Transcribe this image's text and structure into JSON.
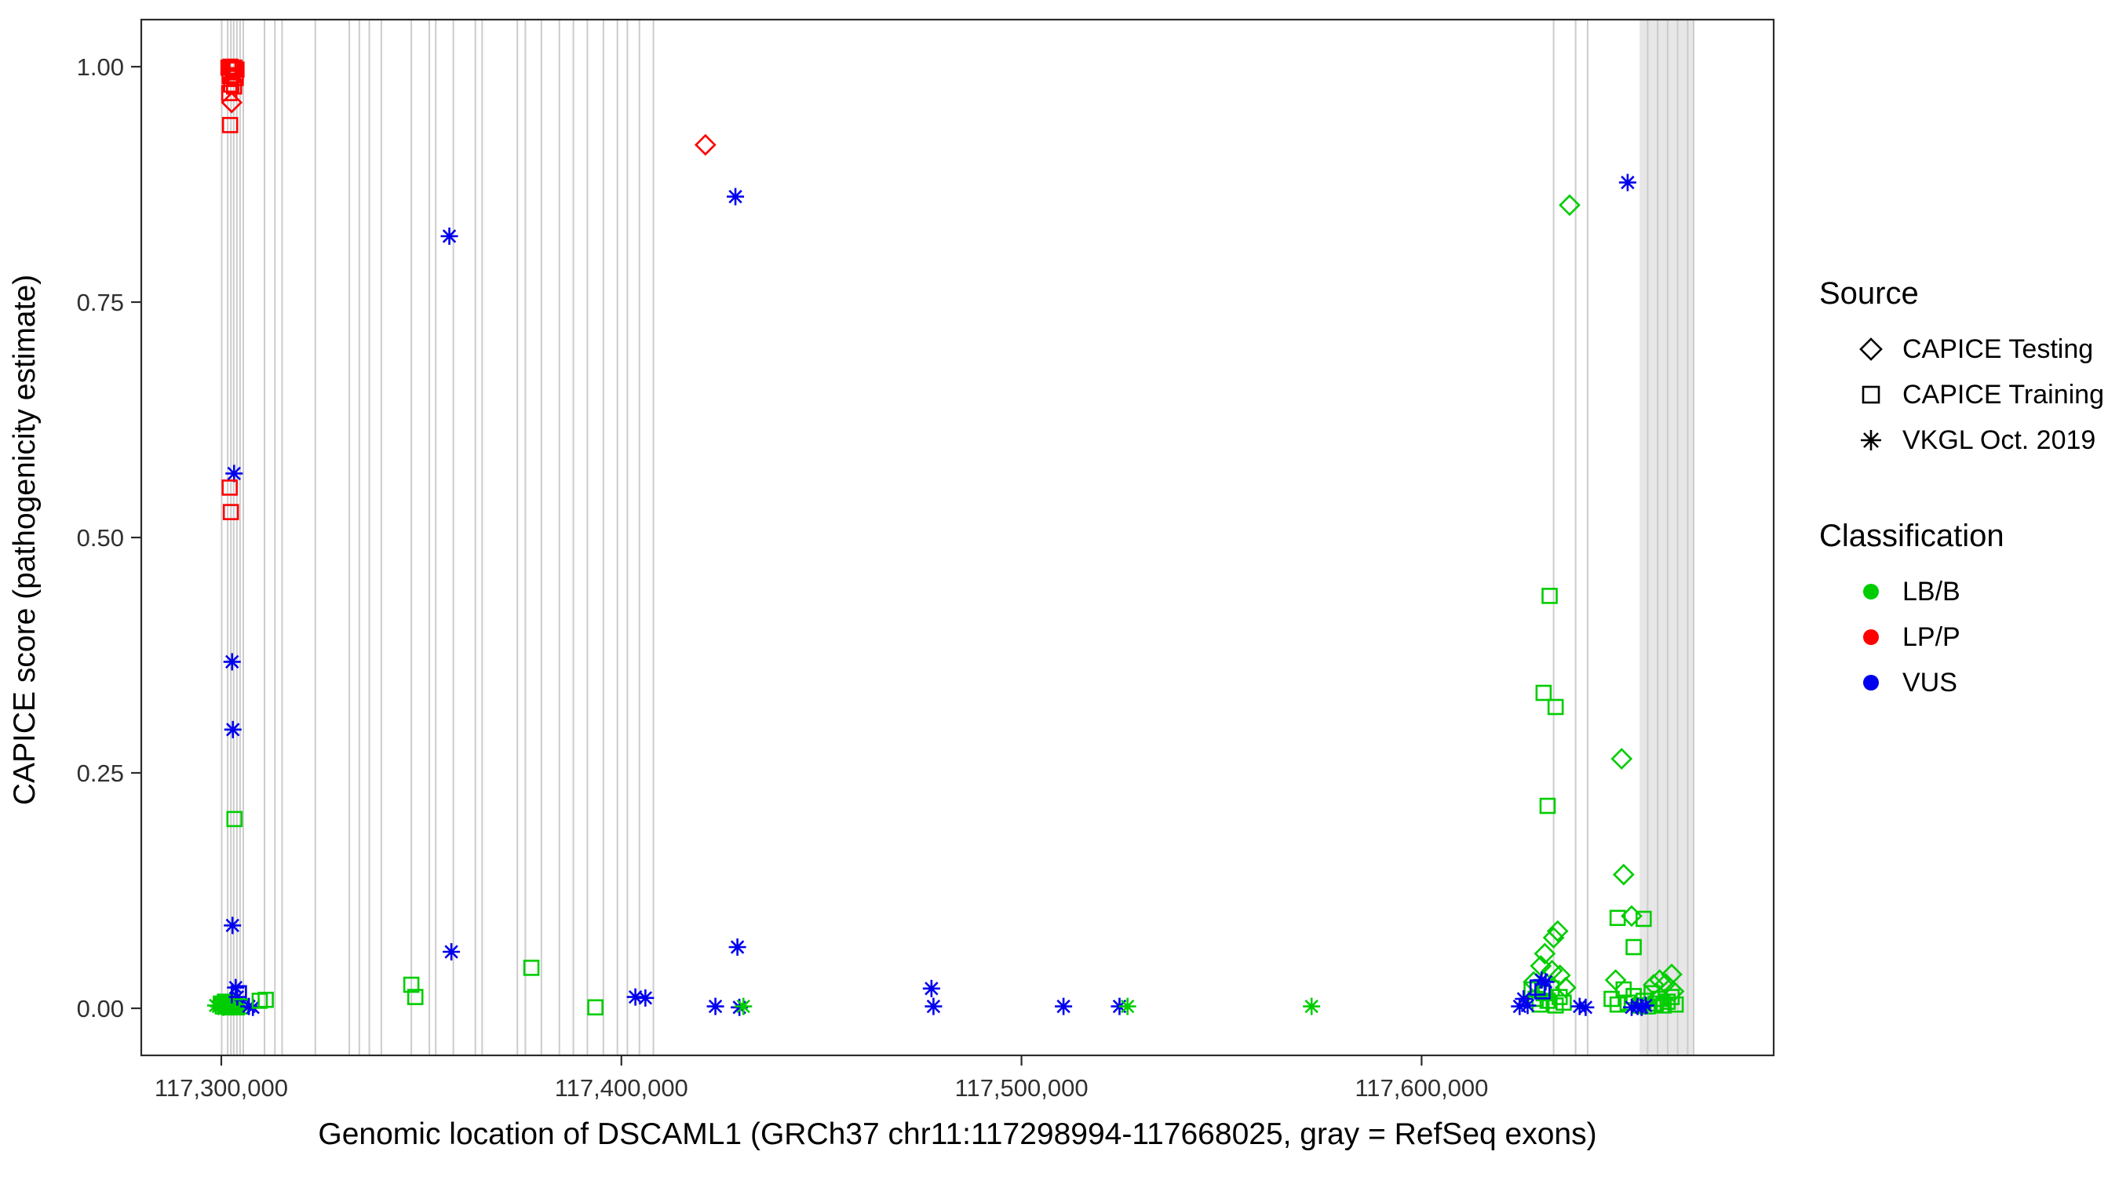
{
  "legend": {
    "source_title": "Source",
    "source_items": [
      {
        "label": "CAPICE Testing",
        "shape": "diamond"
      },
      {
        "label": "CAPICE Training",
        "shape": "square"
      },
      {
        "label": "VKGL Oct. 2019",
        "shape": "asterisk"
      }
    ],
    "classification_title": "Classification",
    "classification_items": [
      {
        "label": "LB/B",
        "color": "#00CD00"
      },
      {
        "label": "LP/P",
        "color": "#FF0000"
      },
      {
        "label": "VUS",
        "color": "#0000EE"
      }
    ]
  },
  "chart_data": {
    "type": "scatter",
    "title": "",
    "xlabel": "Genomic location of DSCAML1 (GRCh37 chr11:117298994-117668025, gray = RefSeq exons)",
    "ylabel": "CAPICE score (pathogenicity estimate)",
    "xlim": [
      117280000,
      117688000
    ],
    "ylim": [
      -0.05,
      1.05
    ],
    "x_ticks": [
      {
        "value": 117300000,
        "label": "117,300,000"
      },
      {
        "value": 117400000,
        "label": "117,400,000"
      },
      {
        "value": 117500000,
        "label": "117,500,000"
      },
      {
        "value": 117600000,
        "label": "117,600,000"
      }
    ],
    "y_ticks": [
      {
        "value": 0.0,
        "label": "0.00"
      },
      {
        "value": 0.25,
        "label": "0.25"
      },
      {
        "value": 0.5,
        "label": "0.50"
      },
      {
        "value": 0.75,
        "label": "0.75"
      },
      {
        "value": 1.0,
        "label": "1.00"
      }
    ],
    "source_codes": {
      "T": "CAPICE Testing",
      "R": "CAPICE Training",
      "V": "VKGL Oct. 2019"
    },
    "class_codes": {
      "B": "LB/B",
      "P": "LP/P",
      "U": "VUS"
    },
    "shape_by_source": {
      "CAPICE Testing": "diamond",
      "CAPICE Training": "square",
      "VKGL Oct. 2019": "asterisk"
    },
    "color_by_classification": {
      "LB/B": "#00CD00",
      "LP/P": "#FF0000",
      "VUS": "#0000EE"
    },
    "exon_color": "#CCCCCC",
    "exon_band": {
      "start": 117654500,
      "end": 117668000,
      "fill": "#E7E7E7"
    },
    "exon_lines": [
      117300100,
      117301600,
      117302400,
      117303100,
      117303900,
      117304700,
      117305500,
      117310800,
      117313400,
      117315200,
      117323500,
      117332000,
      117334500,
      117337000,
      117340000,
      117347500,
      117352000,
      117353600,
      117358000,
      117363500,
      117365200,
      117374000,
      117376000,
      117380000,
      117384500,
      117388000,
      117391500,
      117395500,
      117399000,
      117401500,
      117404500,
      117408000,
      117633000,
      117638500,
      117641500,
      117656500,
      117659000,
      117661500,
      117664000,
      117666500,
      117668000
    ],
    "points": [
      [
        117301800,
        0.999,
        "R",
        "P"
      ],
      [
        117302300,
        1.0,
        "R",
        "P"
      ],
      [
        117302800,
        0.998,
        "R",
        "P"
      ],
      [
        117303300,
        0.999,
        "R",
        "P"
      ],
      [
        117303800,
        0.997,
        "R",
        "P"
      ],
      [
        117302100,
        0.99,
        "R",
        "P"
      ],
      [
        117302900,
        0.991,
        "R",
        "P"
      ],
      [
        117303600,
        0.988,
        "R",
        "P"
      ],
      [
        117302500,
        0.981,
        "R",
        "P"
      ],
      [
        117303200,
        0.979,
        "R",
        "P"
      ],
      [
        117302000,
        0.972,
        "R",
        "P"
      ],
      [
        117302600,
        0.962,
        "T",
        "P"
      ],
      [
        117302200,
        0.938,
        "R",
        "P"
      ],
      [
        117303200,
        0.568,
        "V",
        "U"
      ],
      [
        117302100,
        0.553,
        "R",
        "P"
      ],
      [
        117302400,
        0.527,
        "R",
        "P"
      ],
      [
        117302700,
        0.368,
        "V",
        "U"
      ],
      [
        117302900,
        0.296,
        "V",
        "U"
      ],
      [
        117303300,
        0.201,
        "R",
        "B"
      ],
      [
        117302800,
        0.088,
        "V",
        "U"
      ],
      [
        117298600,
        0.003,
        "V",
        "B"
      ],
      [
        117299300,
        0.002,
        "V",
        "B"
      ],
      [
        117299900,
        0.005,
        "R",
        "B"
      ],
      [
        117300400,
        0.002,
        "R",
        "B"
      ],
      [
        117300900,
        0.007,
        "R",
        "B"
      ],
      [
        117301400,
        0.003,
        "R",
        "B"
      ],
      [
        117301900,
        0.001,
        "R",
        "B"
      ],
      [
        117302400,
        0.006,
        "R",
        "B"
      ],
      [
        117302900,
        0.002,
        "R",
        "B"
      ],
      [
        117303400,
        0.004,
        "R",
        "B"
      ],
      [
        117303900,
        0.001,
        "R",
        "B"
      ],
      [
        117300600,
        0.003,
        "T",
        "B"
      ],
      [
        117303600,
        0.022,
        "V",
        "U"
      ],
      [
        117304000,
        0.012,
        "V",
        "U"
      ],
      [
        117304400,
        0.016,
        "R",
        "U"
      ],
      [
        117304900,
        0.002,
        "R",
        "B"
      ],
      [
        117306900,
        0.002,
        "V",
        "U"
      ],
      [
        117307900,
        0.001,
        "V",
        "U"
      ],
      [
        117309600,
        0.008,
        "R",
        "B"
      ],
      [
        117311100,
        0.009,
        "R",
        "B"
      ],
      [
        117347500,
        0.025,
        "R",
        "B"
      ],
      [
        117348500,
        0.012,
        "R",
        "B"
      ],
      [
        117357000,
        0.82,
        "V",
        "U"
      ],
      [
        117357500,
        0.06,
        "V",
        "U"
      ],
      [
        117377500,
        0.043,
        "R",
        "B"
      ],
      [
        117393500,
        0.001,
        "R",
        "B"
      ],
      [
        117403500,
        0.012,
        "V",
        "U"
      ],
      [
        117406000,
        0.011,
        "V",
        "U"
      ],
      [
        117421000,
        0.917,
        "T",
        "P"
      ],
      [
        117428500,
        0.862,
        "V",
        "U"
      ],
      [
        117429000,
        0.065,
        "V",
        "U"
      ],
      [
        117423500,
        0.002,
        "V",
        "U"
      ],
      [
        117429500,
        0.001,
        "V",
        "U"
      ],
      [
        117430500,
        0.002,
        "V",
        "B"
      ],
      [
        117477500,
        0.021,
        "V",
        "U"
      ],
      [
        117478000,
        0.002,
        "V",
        "U"
      ],
      [
        117510500,
        0.002,
        "V",
        "U"
      ],
      [
        117524500,
        0.002,
        "V",
        "U"
      ],
      [
        117526500,
        0.002,
        "V",
        "B"
      ],
      [
        117572500,
        0.002,
        "V",
        "B"
      ],
      [
        117637000,
        0.853,
        "T",
        "B"
      ],
      [
        117651500,
        0.877,
        "V",
        "U"
      ],
      [
        117632000,
        0.438,
        "R",
        "B"
      ],
      [
        117630500,
        0.335,
        "R",
        "B"
      ],
      [
        117633500,
        0.32,
        "R",
        "B"
      ],
      [
        117631500,
        0.215,
        "R",
        "B"
      ],
      [
        117650000,
        0.265,
        "T",
        "B"
      ],
      [
        117650500,
        0.142,
        "T",
        "B"
      ],
      [
        117649000,
        0.096,
        "R",
        "B"
      ],
      [
        117652500,
        0.098,
        "T",
        "B"
      ],
      [
        117655500,
        0.095,
        "R",
        "B"
      ],
      [
        117634000,
        0.082,
        "T",
        "B"
      ],
      [
        117633000,
        0.075,
        "T",
        "B"
      ],
      [
        117653000,
        0.065,
        "R",
        "B"
      ],
      [
        117630800,
        0.058,
        "T",
        "B"
      ],
      [
        117629800,
        0.045,
        "T",
        "B"
      ],
      [
        117632600,
        0.04,
        "T",
        "B"
      ],
      [
        117634600,
        0.035,
        "T",
        "B"
      ],
      [
        117659500,
        0.03,
        "T",
        "B"
      ],
      [
        117661000,
        0.026,
        "T",
        "B"
      ],
      [
        117662500,
        0.036,
        "T",
        "B"
      ],
      [
        117627500,
        0.02,
        "R",
        "B"
      ],
      [
        117628500,
        0.01,
        "R",
        "B"
      ],
      [
        117629500,
        0.004,
        "R",
        "B"
      ],
      [
        117630500,
        0.016,
        "R",
        "B"
      ],
      [
        117631500,
        0.008,
        "R",
        "B"
      ],
      [
        117632500,
        0.021,
        "R",
        "B"
      ],
      [
        117633500,
        0.003,
        "R",
        "B"
      ],
      [
        117634500,
        0.012,
        "R",
        "B"
      ],
      [
        117635500,
        0.006,
        "R",
        "B"
      ],
      [
        117647500,
        0.01,
        "R",
        "B"
      ],
      [
        117649000,
        0.004,
        "R",
        "B"
      ],
      [
        117650500,
        0.02,
        "R",
        "B"
      ],
      [
        117651500,
        0.006,
        "R",
        "B"
      ],
      [
        117653000,
        0.013,
        "R",
        "B"
      ],
      [
        117654500,
        0.003,
        "R",
        "B"
      ],
      [
        117655500,
        0.008,
        "R",
        "B"
      ],
      [
        117656500,
        0.002,
        "R",
        "B"
      ],
      [
        117657500,
        0.016,
        "R",
        "B"
      ],
      [
        117658500,
        0.005,
        "R",
        "B"
      ],
      [
        117659500,
        0.01,
        "R",
        "B"
      ],
      [
        117660500,
        0.003,
        "R",
        "B"
      ],
      [
        117661500,
        0.007,
        "R",
        "B"
      ],
      [
        117662500,
        0.012,
        "R",
        "B"
      ],
      [
        117663500,
        0.004,
        "R",
        "B"
      ],
      [
        117628000,
        0.028,
        "T",
        "B"
      ],
      [
        117636000,
        0.022,
        "T",
        "B"
      ],
      [
        117648500,
        0.03,
        "T",
        "B"
      ],
      [
        117658000,
        0.025,
        "T",
        "B"
      ],
      [
        117663000,
        0.018,
        "T",
        "B"
      ],
      [
        117624500,
        0.002,
        "V",
        "U"
      ],
      [
        117625500,
        0.01,
        "V",
        "U"
      ],
      [
        117626500,
        0.003,
        "V",
        "U"
      ],
      [
        117639500,
        0.002,
        "V",
        "U"
      ],
      [
        117641000,
        0.001,
        "V",
        "U"
      ],
      [
        117630000,
        0.03,
        "V",
        "U"
      ],
      [
        117631000,
        0.028,
        "V",
        "U"
      ],
      [
        117652500,
        0.001,
        "V",
        "U"
      ],
      [
        117654000,
        0.002,
        "V",
        "U"
      ],
      [
        117655000,
        0.001,
        "V",
        "U"
      ],
      [
        117656000,
        0.003,
        "V",
        "U"
      ],
      [
        117629000,
        0.022,
        "R",
        "U"
      ],
      [
        117630200,
        0.018,
        "R",
        "U"
      ]
    ]
  }
}
